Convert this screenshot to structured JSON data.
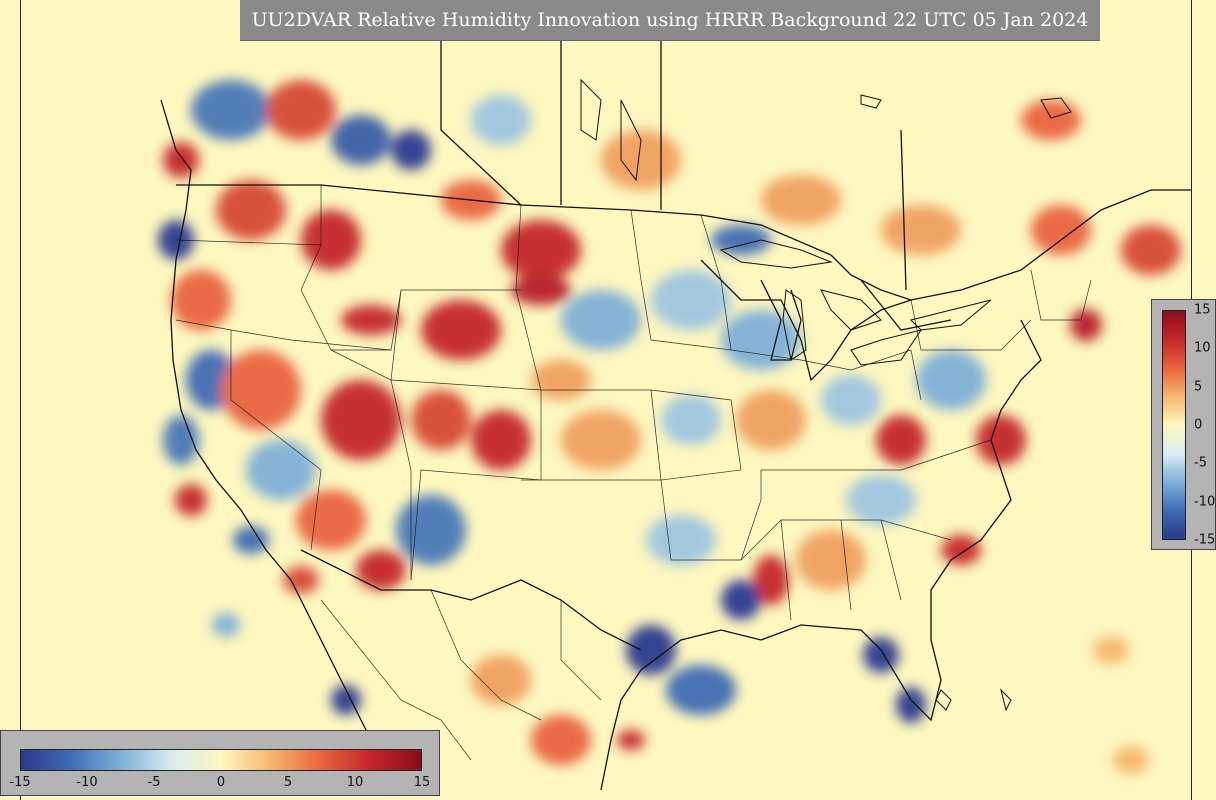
{
  "title": "UU2DVAR Relative Humidity Innovation using HRRR Background 22 UTC 05 Jan 2024",
  "colorbar": {
    "vertical_ticks": [
      "15",
      "10",
      "5",
      "0",
      "-5",
      "-10",
      "-15"
    ],
    "horizontal_ticks": [
      "-15",
      "-10",
      "-5",
      "0",
      "5",
      "10",
      "15"
    ],
    "range": [
      -15,
      15
    ],
    "colors": [
      "#2b3a8f",
      "#3f6cb4",
      "#7fb0d8",
      "#d9ecf2",
      "#fdf7c0",
      "#f7b770",
      "#e8643f",
      "#c4262a",
      "#8b0d1a"
    ]
  }
}
